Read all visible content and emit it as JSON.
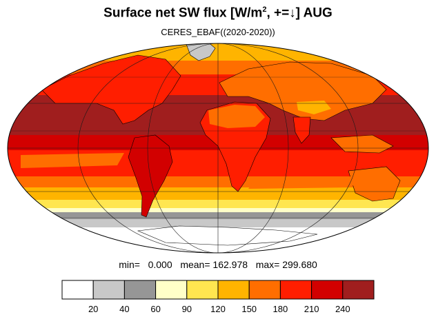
{
  "header": {
    "title_main": "Surface net SW flux [W/m",
    "title_sup": "2",
    "title_rest": ", +=↓]  AUG",
    "subtitle": "CERES_EBAF((2020-2020))"
  },
  "stats": {
    "min_label": "min=",
    "min_value": "0.000",
    "mean_label": "mean=",
    "mean_value": "162.978",
    "max_label": "max=",
    "max_value": "299.680"
  },
  "colorbar": {
    "ticks": [
      "20",
      "40",
      "60",
      "90",
      "120",
      "150",
      "180",
      "210",
      "240"
    ],
    "colors": [
      "#ffffff",
      "#c8c8c8",
      "#969696",
      "#ffffc8",
      "#ffe650",
      "#ffb400",
      "#ff6e00",
      "#ff1e00",
      "#d20000",
      "#a01e1e"
    ]
  },
  "map_palette": {
    "ocean_equator": "#a01e1e",
    "band_1": "#d20000",
    "band_2": "#ff1e00",
    "band_3": "#ff6e00",
    "band_4": "#ffb400",
    "band_5": "#ffe650",
    "band_6": "#ffffc8",
    "band_7": "#969696",
    "band_8": "#c8c8c8",
    "antarctica": "#ffffff"
  }
}
